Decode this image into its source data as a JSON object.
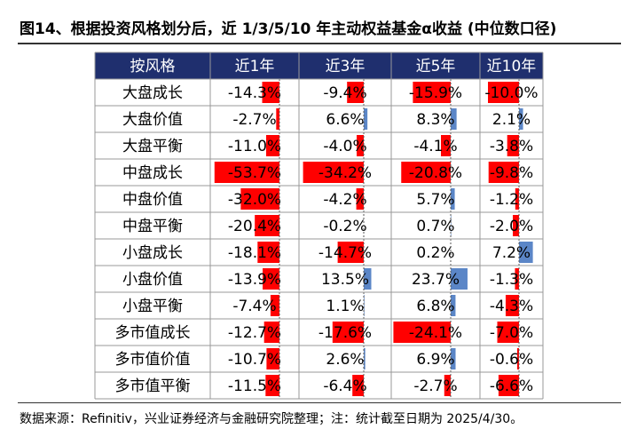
{
  "title": "图14、根据投资风格划分后，近 1/3/5/10 年主动权益基金α收益 (中位数口径)",
  "footnote": "数据来源：Refinitiv，兴业证券经济与金融研究院整理；注：统计截至日期为 2025/4/30。",
  "colors": {
    "header_bg": "#1f2f6e",
    "negative": "#ff0000",
    "positive": "#5b86c7",
    "border": "#999999"
  },
  "chart_data": {
    "type": "table",
    "corner_header": "按风格",
    "columns": [
      "近1年",
      "近3年",
      "近5年",
      "近10年"
    ],
    "rows": [
      {
        "label": "大盘成长",
        "values": [
          -14.3,
          -9.4,
          -15.9,
          -10.0
        ],
        "texts": [
          "-14.3%",
          "-9.4%",
          "-15.9%",
          "-10.0%"
        ]
      },
      {
        "label": "大盘价值",
        "values": [
          -2.7,
          6.6,
          8.3,
          2.1
        ],
        "texts": [
          "-2.7%",
          "6.6%",
          "8.3%",
          "2.1%"
        ]
      },
      {
        "label": "大盘平衡",
        "values": [
          -11.0,
          -4.0,
          -4.1,
          -3.8
        ],
        "texts": [
          "-11.0%",
          "-4.0%",
          "-4.1%",
          "-3.8%"
        ]
      },
      {
        "label": "中盘成长",
        "values": [
          -53.7,
          -34.2,
          -20.8,
          -9.8
        ],
        "texts": [
          "-53.7%",
          "-34.2%",
          "-20.8%",
          "-9.8%"
        ]
      },
      {
        "label": "中盘价值",
        "values": [
          -32.0,
          -4.2,
          5.7,
          -1.2
        ],
        "texts": [
          "-32.0%",
          "-4.2%",
          "5.7%",
          "-1.2%"
        ]
      },
      {
        "label": "中盘平衡",
        "values": [
          -20.4,
          -0.2,
          0.7,
          -2.0
        ],
        "texts": [
          "-20.4%",
          "-0.2%",
          "0.7%",
          "-2.0%"
        ]
      },
      {
        "label": "小盘成长",
        "values": [
          -18.1,
          -14.7,
          0.2,
          7.2
        ],
        "texts": [
          "-18.1%",
          "-14.7%",
          "0.2%",
          "7.2%"
        ]
      },
      {
        "label": "小盘价值",
        "values": [
          -13.9,
          13.5,
          23.7,
          -1.3
        ],
        "texts": [
          "-13.9%",
          "13.5%",
          "23.7%",
          "-1.3%"
        ]
      },
      {
        "label": "小盘平衡",
        "values": [
          -7.4,
          1.1,
          6.8,
          -4.3
        ],
        "texts": [
          "-7.4%",
          "1.1%",
          "6.8%",
          "-4.3%"
        ]
      },
      {
        "label": "多市值成长",
        "values": [
          -12.7,
          -17.6,
          -24.1,
          -7.0
        ],
        "texts": [
          "-12.7%",
          "-17.6%",
          "-24.1%",
          "-7.0%"
        ]
      },
      {
        "label": "多市值价值",
        "values": [
          -10.7,
          2.6,
          6.9,
          -0.6
        ],
        "texts": [
          "-10.7%",
          "2.6%",
          "6.9%",
          "-0.6%"
        ]
      },
      {
        "label": "多市值平衡",
        "values": [
          -11.5,
          -6.4,
          -2.7,
          -6.6
        ],
        "texts": [
          "-11.5%",
          "-6.4%",
          "-2.7%",
          "-6.6%"
        ]
      }
    ]
  }
}
